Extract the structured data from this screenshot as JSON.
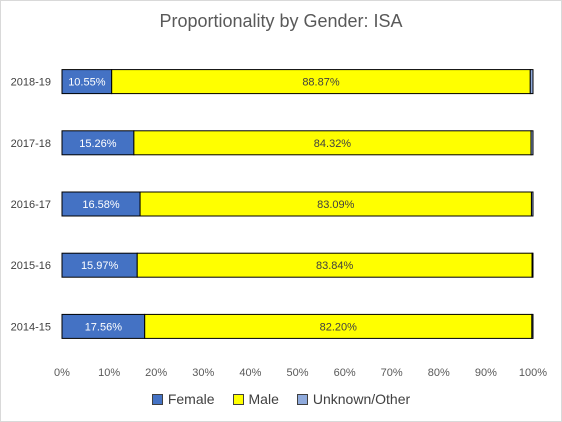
{
  "chart_data": {
    "type": "bar",
    "orientation": "horizontal",
    "stacked": true,
    "title": "Proportionality by Gender: ISA",
    "categories": [
      "2018-19",
      "2017-18",
      "2016-17",
      "2015-16",
      "2014-15"
    ],
    "series": [
      {
        "name": "Female",
        "color": "#4472c4",
        "values": [
          10.55,
          15.26,
          16.58,
          15.97,
          17.56
        ],
        "labels": [
          "10.55%",
          "15.26%",
          "16.58%",
          "15.97%",
          "17.56%"
        ]
      },
      {
        "name": "Male",
        "color": "#ffff00",
        "values": [
          88.87,
          84.32,
          83.09,
          83.84,
          82.2
        ],
        "labels": [
          "88.87%",
          "84.32%",
          "83.09%",
          "83.84%",
          "82.20%"
        ]
      },
      {
        "name": "Unknown/Other",
        "color": "#8faadc",
        "values": [
          0.58,
          0.42,
          0.33,
          0.19,
          0.24
        ],
        "labels": []
      }
    ],
    "x_ticks": [
      "0%",
      "10%",
      "20%",
      "30%",
      "40%",
      "50%",
      "60%",
      "70%",
      "80%",
      "90%",
      "100%"
    ],
    "xlim": [
      0,
      100
    ],
    "grid": false,
    "legend_position": "bottom"
  }
}
